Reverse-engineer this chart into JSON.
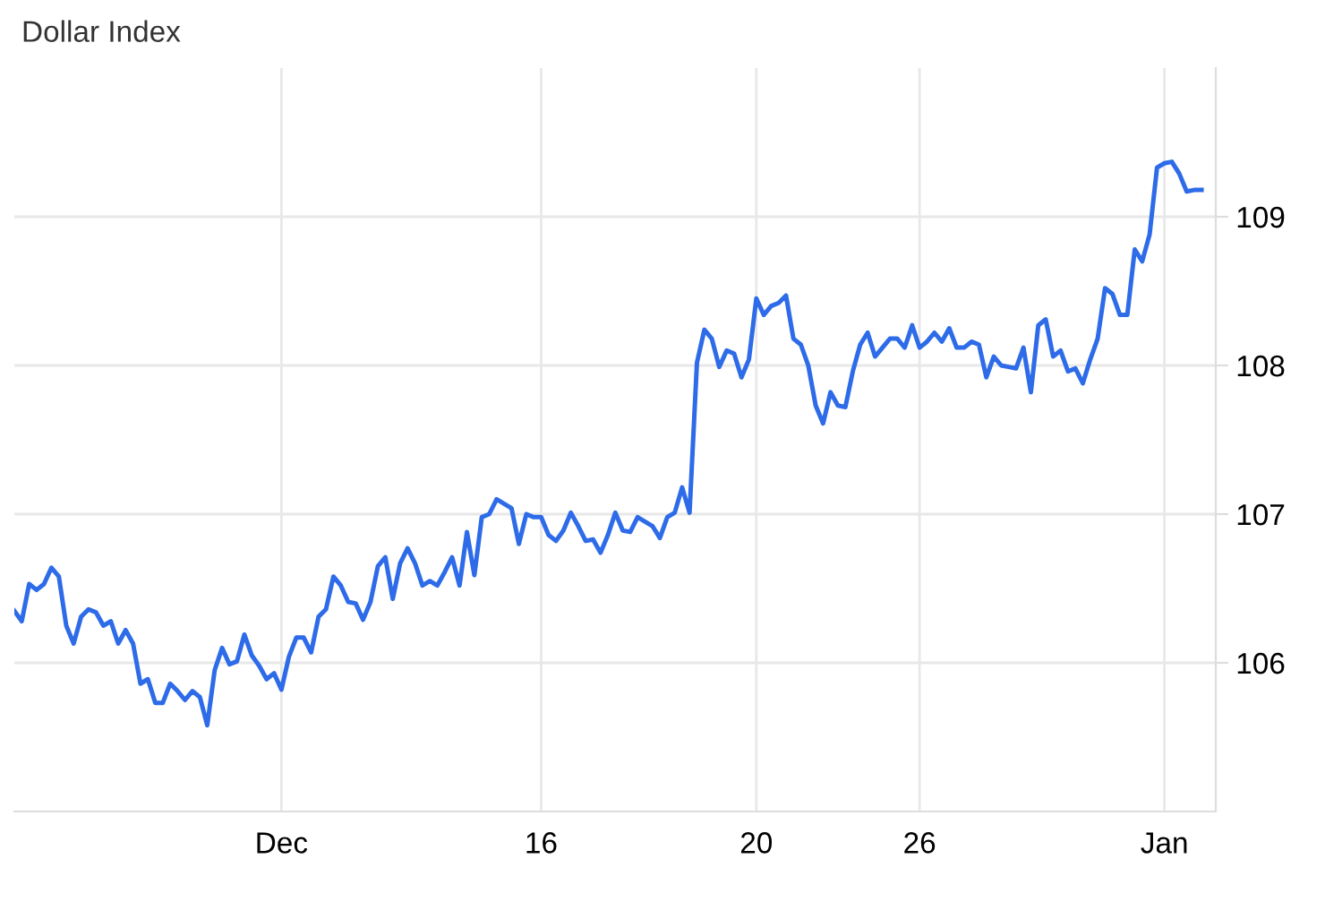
{
  "chart_data": {
    "type": "line",
    "title": "Dollar Index",
    "categories": [
      null,
      null,
      null,
      null,
      null,
      null,
      null,
      null,
      null,
      null,
      null,
      null,
      null,
      null,
      null,
      null,
      null,
      null,
      null,
      null,
      null,
      null,
      null,
      null,
      null,
      null,
      null,
      null,
      null,
      null,
      null,
      null,
      null,
      null,
      null,
      null,
      "Dec",
      null,
      null,
      null,
      null,
      null,
      null,
      null,
      null,
      null,
      null,
      null,
      null,
      null,
      null,
      null,
      null,
      null,
      null,
      null,
      null,
      null,
      null,
      null,
      null,
      null,
      null,
      null,
      null,
      null,
      null,
      null,
      null,
      null,
      null,
      "16",
      null,
      null,
      null,
      null,
      null,
      null,
      null,
      null,
      null,
      null,
      null,
      null,
      null,
      null,
      null,
      null,
      null,
      null,
      null,
      null,
      null,
      null,
      null,
      null,
      null,
      null,
      null,
      null,
      "20",
      null,
      null,
      null,
      null,
      null,
      null,
      null,
      null,
      null,
      null,
      null,
      null,
      null,
      null,
      null,
      null,
      null,
      null,
      null,
      null,
      null,
      "26",
      null,
      null,
      null,
      null,
      null,
      null,
      null,
      null,
      null,
      null,
      null,
      null,
      null,
      null,
      null,
      null,
      null,
      null,
      null,
      null,
      null,
      null,
      null,
      null,
      null,
      null,
      null,
      null,
      null,
      null,
      null,
      null,
      "Jan",
      null,
      null,
      null,
      null,
      null
    ],
    "series": [
      {
        "color": "#2d6be8",
        "values": [
          106.35,
          106.28,
          106.53,
          106.49,
          106.53,
          106.64,
          106.58,
          106.25,
          106.13,
          106.31,
          106.36,
          106.34,
          106.25,
          106.28,
          106.13,
          106.22,
          106.13,
          105.86,
          105.89,
          105.73,
          105.73,
          105.86,
          105.81,
          105.75,
          105.81,
          105.77,
          105.58,
          105.95,
          106.1,
          105.99,
          106.01,
          106.19,
          106.05,
          105.98,
          105.89,
          105.93,
          105.82,
          106.04,
          106.17,
          106.17,
          106.07,
          106.31,
          106.36,
          106.58,
          106.52,
          106.41,
          106.4,
          106.29,
          106.41,
          106.65,
          106.71,
          106.43,
          106.67,
          106.77,
          106.67,
          106.52,
          106.55,
          106.52,
          106.61,
          106.71,
          106.52,
          106.88,
          106.59,
          106.98,
          107.0,
          107.1,
          107.07,
          107.04,
          106.8,
          107.0,
          106.98,
          106.98,
          106.86,
          106.82,
          106.89,
          107.01,
          106.92,
          106.82,
          106.83,
          106.74,
          106.86,
          107.01,
          106.89,
          106.88,
          106.98,
          106.95,
          106.92,
          106.84,
          106.98,
          107.01,
          107.18,
          107.01,
          108.02,
          108.24,
          108.18,
          107.99,
          108.1,
          108.08,
          107.92,
          108.04,
          108.45,
          108.34,
          108.4,
          108.42,
          108.47,
          108.18,
          108.14,
          108.0,
          107.73,
          107.61,
          107.82,
          107.73,
          107.72,
          107.96,
          108.14,
          108.22,
          108.06,
          108.12,
          108.18,
          108.18,
          108.12,
          108.27,
          108.12,
          108.16,
          108.22,
          108.16,
          108.25,
          108.12,
          108.12,
          108.16,
          108.14,
          107.92,
          108.06,
          108.0,
          107.99,
          107.98,
          108.12,
          107.82,
          108.27,
          108.31,
          108.06,
          108.1,
          107.96,
          107.98,
          107.88,
          108.04,
          108.18,
          108.52,
          108.48,
          108.34,
          108.34,
          108.78,
          108.7,
          108.88,
          109.33,
          109.36,
          109.37,
          109.29,
          109.17,
          109.18,
          109.18
        ]
      }
    ],
    "ylim": [
      105,
      110
    ],
    "yticks": [
      106,
      107,
      108,
      109
    ],
    "grid": true,
    "marker": "none",
    "line_style": "solid"
  }
}
